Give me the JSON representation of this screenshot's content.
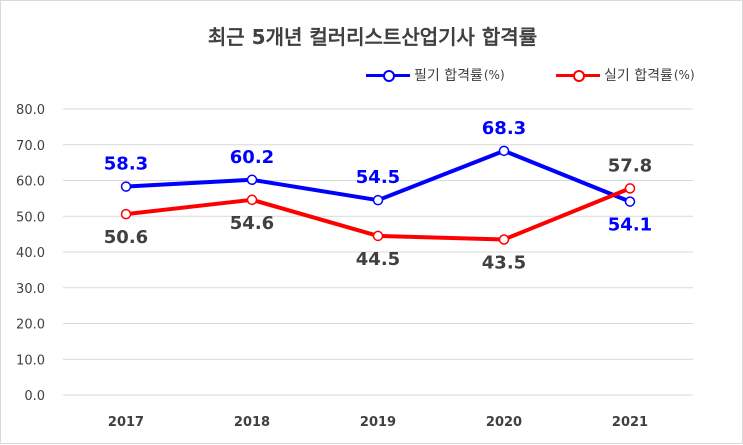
{
  "chart_data": {
    "type": "line",
    "title": "최근 5개년 컬러리스트산업기사 합격률",
    "categories": [
      "2017",
      "2018",
      "2019",
      "2020",
      "2021"
    ],
    "ylim": [
      0,
      80
    ],
    "yticks": [
      "0.0",
      "10.0",
      "20.0",
      "30.0",
      "40.0",
      "50.0",
      "60.0",
      "70.0",
      "80.0"
    ],
    "grid": true,
    "legend_position": "top-right",
    "series": [
      {
        "name": "필기 합격률",
        "unit": "(%)",
        "color": "#0000ff",
        "values": [
          58.3,
          60.2,
          54.5,
          68.3,
          54.1
        ],
        "labels": [
          "58.3",
          "60.2",
          "54.5",
          "68.3",
          "54.1"
        ]
      },
      {
        "name": "실기 합격률",
        "unit": "(%)",
        "color": "#ff0000",
        "values": [
          50.6,
          54.6,
          44.5,
          43.5,
          57.8
        ],
        "labels": [
          "50.6",
          "54.6",
          "44.5",
          "43.5",
          "57.8"
        ]
      }
    ]
  }
}
